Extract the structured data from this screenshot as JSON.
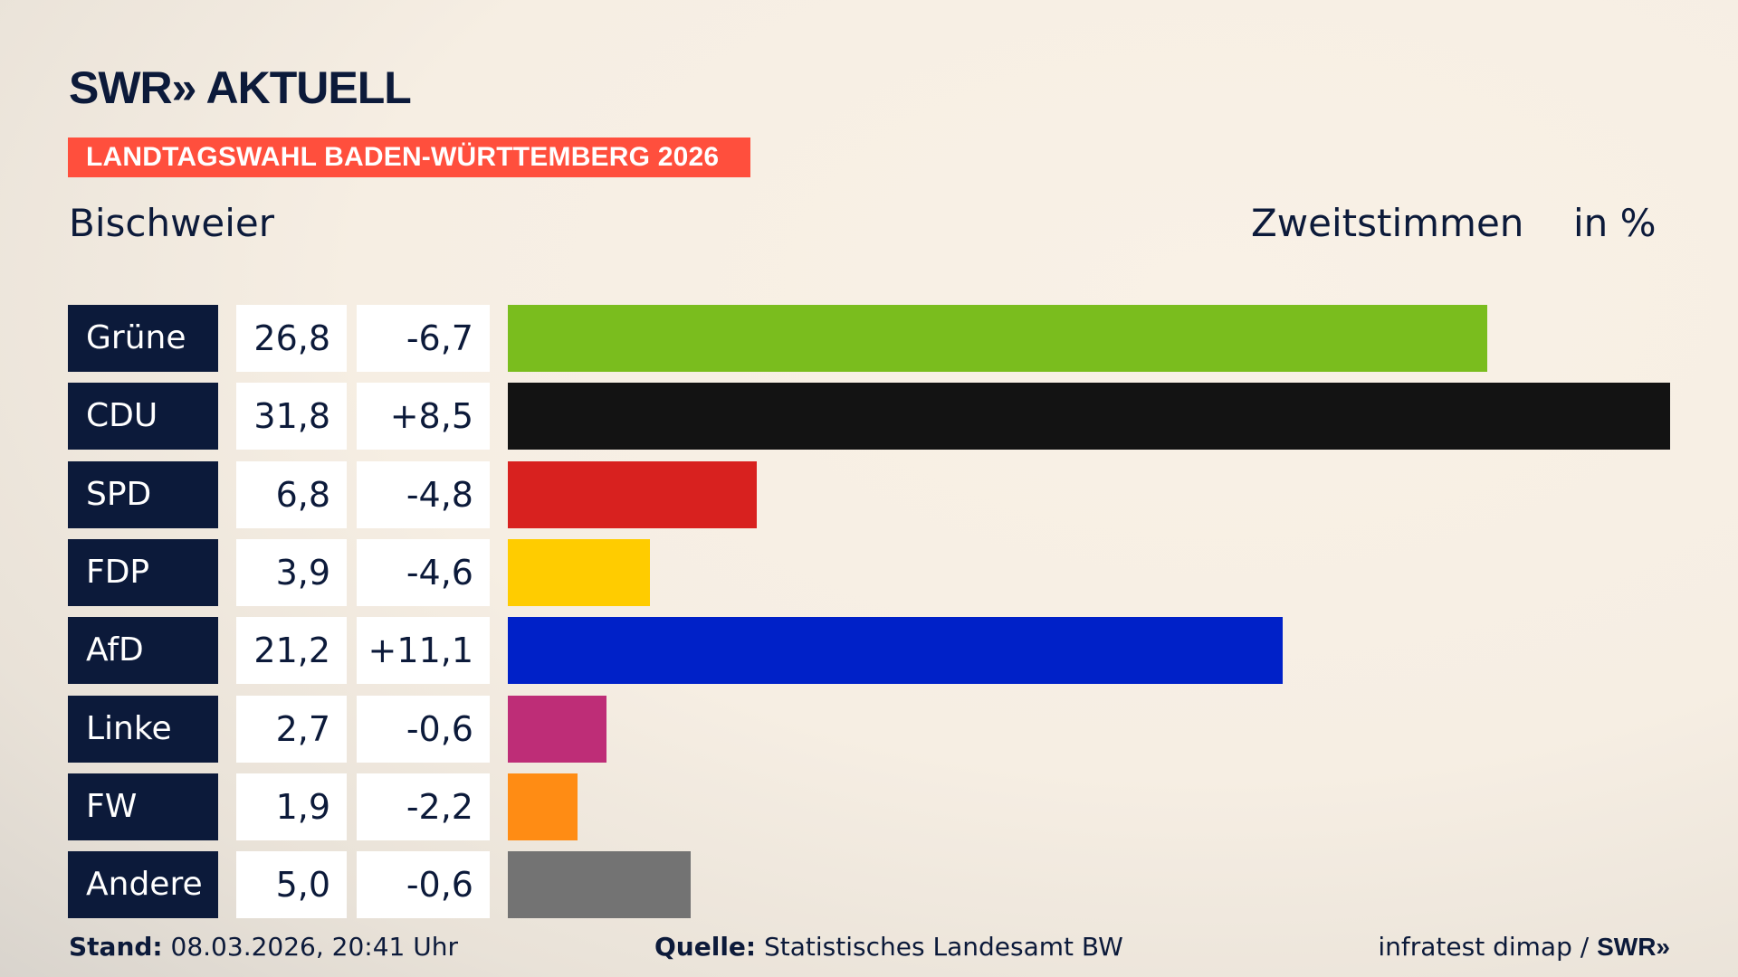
{
  "header": {
    "logo": "SWR» AKTUELL",
    "banner": "LANDTAGSWAHL BADEN-WÜRTTEMBERG 2026",
    "region": "Bischweier",
    "metric": "Zweitstimmen",
    "unit": "in %"
  },
  "chart_data": {
    "type": "bar",
    "orientation": "horizontal",
    "categories": [
      "Grüne",
      "CDU",
      "SPD",
      "FDP",
      "AfD",
      "Linke",
      "FW",
      "Andere"
    ],
    "values": [
      26.8,
      31.8,
      6.8,
      3.9,
      21.2,
      2.7,
      1.9,
      5.0
    ],
    "value_labels": [
      "26,8",
      "31,8",
      "6,8",
      "3,9",
      "21,2",
      "2,7",
      "1,9",
      "5,0"
    ],
    "diffs": [
      -6.7,
      8.5,
      -4.8,
      -4.6,
      11.1,
      -0.6,
      -2.2,
      -0.6
    ],
    "diff_labels": [
      "-6,7",
      "+8,5",
      "-4,8",
      "-4,6",
      "+11,1",
      "-0,6",
      "-2,2",
      "-0,6"
    ],
    "colors": [
      "#7abd1e",
      "#131313",
      "#d8211f",
      "#ffcc00",
      "#0021c8",
      "#be2d77",
      "#ff8c14",
      "#737373"
    ],
    "title": "Zweitstimmen",
    "unit": "in %",
    "grid": false
  },
  "footer": {
    "stand_label": "Stand:",
    "stand_value": "08.03.2026, 20:41 Uhr",
    "source_label": "Quelle:",
    "source_value": "Statistisches Landesamt BW",
    "credit": "infratest dimap / ",
    "credit_logo": "SWR»"
  }
}
